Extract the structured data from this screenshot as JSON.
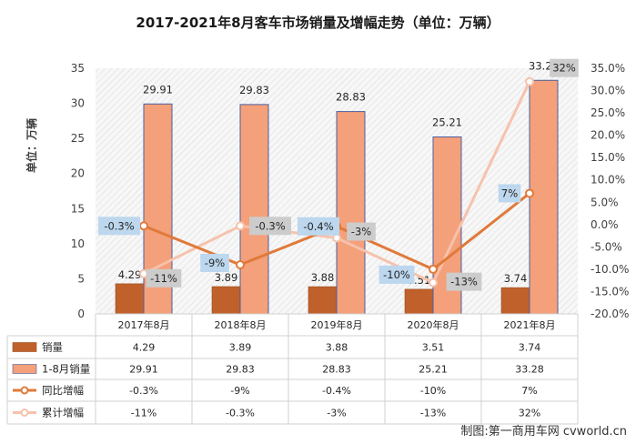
{
  "chart_data": {
    "type": "bar",
    "title": "2017-2021年8月客车市场销量及增幅走势（单位：万辆）",
    "ylabel": "单位：万辆",
    "categories": [
      "2017年8月",
      "2018年8月",
      "2019年8月",
      "2020年8月",
      "2021年8月"
    ],
    "ylim": [
      0,
      35
    ],
    "y_ticks": [
      0,
      5,
      10,
      15,
      20,
      25,
      30,
      35
    ],
    "y2lim": [
      -20,
      35
    ],
    "y2_ticks": [
      "-20.0%",
      "-15.0%",
      "-10.0%",
      "-5.0%",
      "0.0%",
      "5.0%",
      "10.0%",
      "15.0%",
      "20.0%",
      "25.0%",
      "30.0%",
      "35.0%"
    ],
    "grid": false,
    "series": [
      {
        "name": "销量",
        "type": "bar",
        "axis": "left",
        "color": "#c0612b",
        "values": [
          4.29,
          3.89,
          3.88,
          3.51,
          3.74
        ],
        "labels": [
          "4.29",
          "3.89",
          "3.88",
          "3.51",
          "3.74"
        ]
      },
      {
        "name": "1-8月销量",
        "type": "bar",
        "axis": "left",
        "color": "#f4a07a",
        "values": [
          29.91,
          29.83,
          28.83,
          25.21,
          33.28
        ],
        "labels": [
          "29.91",
          "29.83",
          "28.83",
          "25.21",
          "33.28"
        ]
      },
      {
        "name": "同比增幅",
        "type": "line",
        "axis": "right",
        "color": "#e07a3a",
        "values": [
          -0.3,
          -9,
          -0.4,
          -10,
          7
        ],
        "labels": [
          "-0.3%",
          "-9%",
          "-0.4%",
          "-10%",
          "7%"
        ]
      },
      {
        "name": "累计增幅",
        "type": "line",
        "axis": "right",
        "color": "#f6c2ac",
        "values": [
          -11,
          -0.3,
          -3,
          -13,
          32
        ],
        "labels": [
          "-11%",
          "-0.3%",
          "-3%",
          "-13%",
          "32%"
        ]
      }
    ],
    "table": {
      "rows": [
        {
          "name": "销量",
          "cells": [
            "4.29",
            "3.89",
            "3.88",
            "3.51",
            "3.74"
          ]
        },
        {
          "name": "1-8月销量",
          "cells": [
            "29.91",
            "29.83",
            "28.83",
            "25.21",
            "33.28"
          ]
        },
        {
          "name": "同比增幅",
          "cells": [
            "-0.3%",
            "-9%",
            "-0.4%",
            "-10%",
            "7%"
          ]
        },
        {
          "name": "累计增幅",
          "cells": [
            "-11%",
            "-0.3%",
            "-3%",
            "-13%",
            "32%"
          ]
        }
      ]
    },
    "colors": {
      "bar1": "#c0612b",
      "bar2": "#f4a07a",
      "line1": "#e07a3a",
      "line2": "#f6c2ac",
      "label_blue": "#bcd7ee",
      "label_gray": "#cccccc"
    }
  },
  "credit": "制图:第一商用车网 cvworld.cn"
}
